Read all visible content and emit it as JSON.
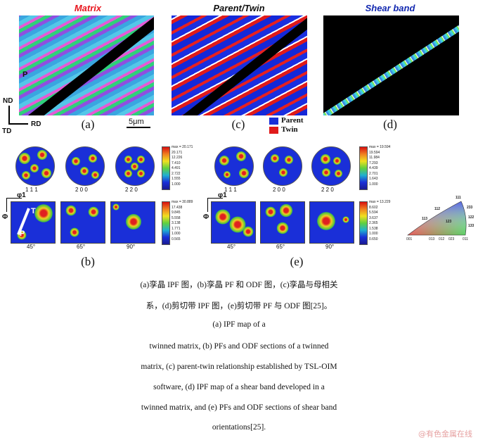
{
  "panels": {
    "matrix_title": "Matrix",
    "parent_twin_title": "Parent/Twin",
    "shear_band_title": "Shear band"
  },
  "colors": {
    "matrix_title": "#e8141c",
    "parent_twin_title": "#111111",
    "shear_band_title": "#1228b0",
    "parent": "#1a2fd8",
    "twin": "#e01a1a"
  },
  "labels": {
    "a": "(a)",
    "b": "(b)",
    "c": "(c)",
    "d": "(d)",
    "e": "(e)",
    "scale": "5μm",
    "nd": "ND",
    "td": "TD",
    "rd": "RD",
    "p_map": "P",
    "t_odf": "T",
    "p_odf": "P",
    "phi1": "φ1",
    "Phi": "Φ"
  },
  "legend": {
    "parent": "Parent",
    "twin": "Twin"
  },
  "pf_b": {
    "names": [
      "1 1 1",
      "2 0 0",
      "2 2 0"
    ],
    "odf_angles": [
      "45°",
      "65°",
      "90°"
    ],
    "pf_scale": [
      "max = 20.171",
      "20.171",
      "12.226",
      "7.410",
      "4.491",
      "2.722",
      "1.555",
      "1.000"
    ],
    "odf_scale": [
      "max = 30.889",
      "17.438",
      "9.845",
      "5.558",
      "3.138",
      "1.771",
      "1.000",
      "0.565"
    ]
  },
  "pf_e": {
    "names": [
      "1 1 1",
      "2 0 0",
      "2 2 0"
    ],
    "odf_angles": [
      "45°",
      "65°",
      "90°"
    ],
    "pf_scale": [
      "max = 19.594",
      "19.594",
      "11.984",
      "7.293",
      "4.439",
      "2.701",
      "1.643",
      "1.000"
    ],
    "odf_scale": [
      "max = 13.229",
      "8.602",
      "5.594",
      "3.637",
      "2.365",
      "1.538",
      "1.000",
      "0.650"
    ]
  },
  "ipf_key": [
    "111",
    "112",
    "113",
    "233",
    "122",
    "133",
    "123",
    "001",
    "013",
    "012",
    "023",
    "011"
  ],
  "caption": {
    "cn_line1": "(a)孪晶 IPF 图，(b)孪晶 PF 和 ODF 图，(c)孪晶与母相关",
    "cn_line2": "系，(d)剪切带 IPF 图，(e)剪切带 PF 与 ODF 图[25]。",
    "en_line1": "(a) IPF map of a",
    "en_line2": "twinned matrix, (b) PFs and ODF sections of a twinned",
    "en_line3": "matrix, (c) parent-twin relationship established by TSL-OIM",
    "en_line4": "software, (d) IPF map of a shear band developed in a",
    "en_line5": "twinned matrix, and (e) PFs and ODF sections of shear band",
    "en_line6": "orientations[25]."
  },
  "watermark": "@有色金属在线"
}
